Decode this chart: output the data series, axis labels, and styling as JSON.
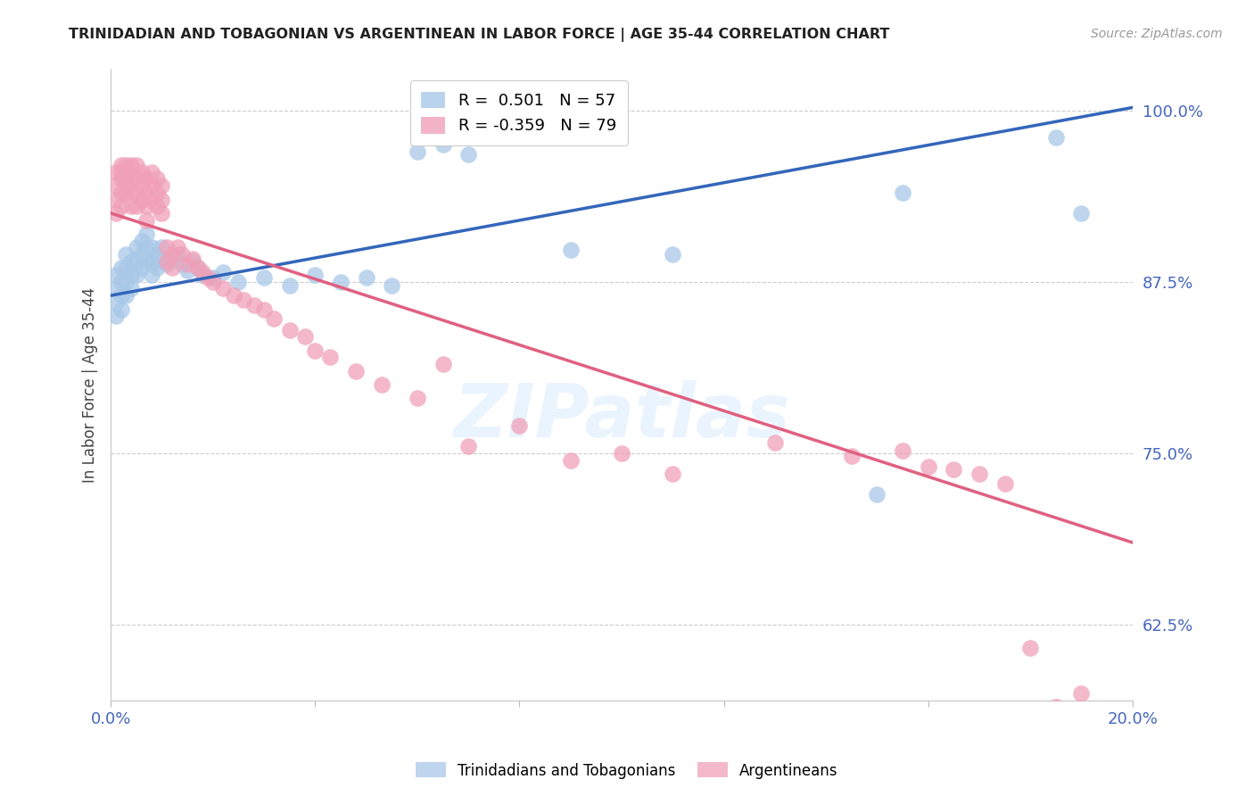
{
  "title": "TRINIDADIAN AND TOBAGONIAN VS ARGENTINEAN IN LABOR FORCE | AGE 35-44 CORRELATION CHART",
  "source": "Source: ZipAtlas.com",
  "ylabel": "In Labor Force | Age 35-44",
  "xlim": [
    0.0,
    0.2
  ],
  "ylim": [
    0.57,
    1.03
  ],
  "yticks": [
    0.625,
    0.75,
    0.875,
    1.0
  ],
  "ytick_labels": [
    "62.5%",
    "75.0%",
    "87.5%",
    "100.0%"
  ],
  "xticks": [
    0.0,
    0.04,
    0.08,
    0.12,
    0.16,
    0.2
  ],
  "xtick_labels": [
    "0.0%",
    "",
    "",
    "",
    "",
    "20.0%"
  ],
  "blue_color": "#a8c8e8",
  "pink_color": "#f0a0b8",
  "blue_line_color": "#3366bb",
  "pink_line_color": "#e06080",
  "blue_r": 0.501,
  "blue_n": 57,
  "pink_r": -0.359,
  "pink_n": 79,
  "blue_line_x0": 0.0,
  "blue_line_y0": 0.865,
  "blue_line_x1": 0.2,
  "blue_line_y1": 1.002,
  "pink_line_x0": 0.0,
  "pink_line_y0": 0.925,
  "pink_line_x1": 0.2,
  "pink_line_y1": 0.685,
  "blue_scatter_x": [
    0.001,
    0.001,
    0.001,
    0.001,
    0.002,
    0.002,
    0.002,
    0.002,
    0.003,
    0.003,
    0.003,
    0.003,
    0.004,
    0.004,
    0.004,
    0.005,
    0.005,
    0.005,
    0.006,
    0.006,
    0.006,
    0.007,
    0.007,
    0.007,
    0.008,
    0.008,
    0.008,
    0.009,
    0.009,
    0.01,
    0.01,
    0.011,
    0.012,
    0.013,
    0.014,
    0.015,
    0.016,
    0.017,
    0.018,
    0.02,
    0.022,
    0.025,
    0.03,
    0.035,
    0.04,
    0.045,
    0.05,
    0.055,
    0.06,
    0.065,
    0.07,
    0.09,
    0.11,
    0.15,
    0.155,
    0.185,
    0.19
  ],
  "blue_scatter_y": [
    0.88,
    0.87,
    0.86,
    0.85,
    0.885,
    0.875,
    0.865,
    0.855,
    0.895,
    0.885,
    0.875,
    0.865,
    0.89,
    0.88,
    0.87,
    0.9,
    0.89,
    0.88,
    0.905,
    0.895,
    0.885,
    0.91,
    0.9,
    0.89,
    0.9,
    0.89,
    0.88,
    0.895,
    0.885,
    0.9,
    0.89,
    0.888,
    0.892,
    0.895,
    0.888,
    0.883,
    0.89,
    0.885,
    0.88,
    0.878,
    0.882,
    0.875,
    0.878,
    0.872,
    0.88,
    0.875,
    0.878,
    0.872,
    0.97,
    0.975,
    0.968,
    0.898,
    0.895,
    0.72,
    0.94,
    0.98,
    0.925
  ],
  "pink_scatter_x": [
    0.001,
    0.001,
    0.001,
    0.001,
    0.002,
    0.002,
    0.002,
    0.002,
    0.002,
    0.003,
    0.003,
    0.003,
    0.003,
    0.003,
    0.004,
    0.004,
    0.004,
    0.004,
    0.005,
    0.005,
    0.005,
    0.005,
    0.006,
    0.006,
    0.006,
    0.007,
    0.007,
    0.007,
    0.007,
    0.008,
    0.008,
    0.008,
    0.009,
    0.009,
    0.009,
    0.01,
    0.01,
    0.01,
    0.011,
    0.011,
    0.012,
    0.012,
    0.013,
    0.014,
    0.015,
    0.016,
    0.017,
    0.018,
    0.019,
    0.02,
    0.022,
    0.024,
    0.026,
    0.028,
    0.03,
    0.032,
    0.035,
    0.038,
    0.04,
    0.043,
    0.048,
    0.053,
    0.06,
    0.065,
    0.07,
    0.08,
    0.09,
    0.1,
    0.11,
    0.13,
    0.145,
    0.155,
    0.16,
    0.165,
    0.17,
    0.175,
    0.18,
    0.185,
    0.19
  ],
  "pink_scatter_y": [
    0.945,
    0.935,
    0.925,
    0.955,
    0.96,
    0.95,
    0.94,
    0.93,
    0.955,
    0.96,
    0.95,
    0.94,
    0.955,
    0.945,
    0.96,
    0.95,
    0.94,
    0.93,
    0.96,
    0.95,
    0.94,
    0.93,
    0.955,
    0.945,
    0.935,
    0.95,
    0.94,
    0.93,
    0.92,
    0.955,
    0.945,
    0.935,
    0.95,
    0.94,
    0.93,
    0.945,
    0.935,
    0.925,
    0.9,
    0.89,
    0.895,
    0.885,
    0.9,
    0.895,
    0.888,
    0.892,
    0.885,
    0.882,
    0.878,
    0.875,
    0.87,
    0.865,
    0.862,
    0.858,
    0.855,
    0.848,
    0.84,
    0.835,
    0.825,
    0.82,
    0.81,
    0.8,
    0.79,
    0.815,
    0.755,
    0.77,
    0.745,
    0.75,
    0.735,
    0.758,
    0.748,
    0.752,
    0.74,
    0.738,
    0.735,
    0.728,
    0.608,
    0.565,
    0.575
  ],
  "watermark": "ZIPatlas",
  "grid_color": "#cccccc",
  "axis_color": "#4466bb",
  "bg_color": "#ffffff"
}
